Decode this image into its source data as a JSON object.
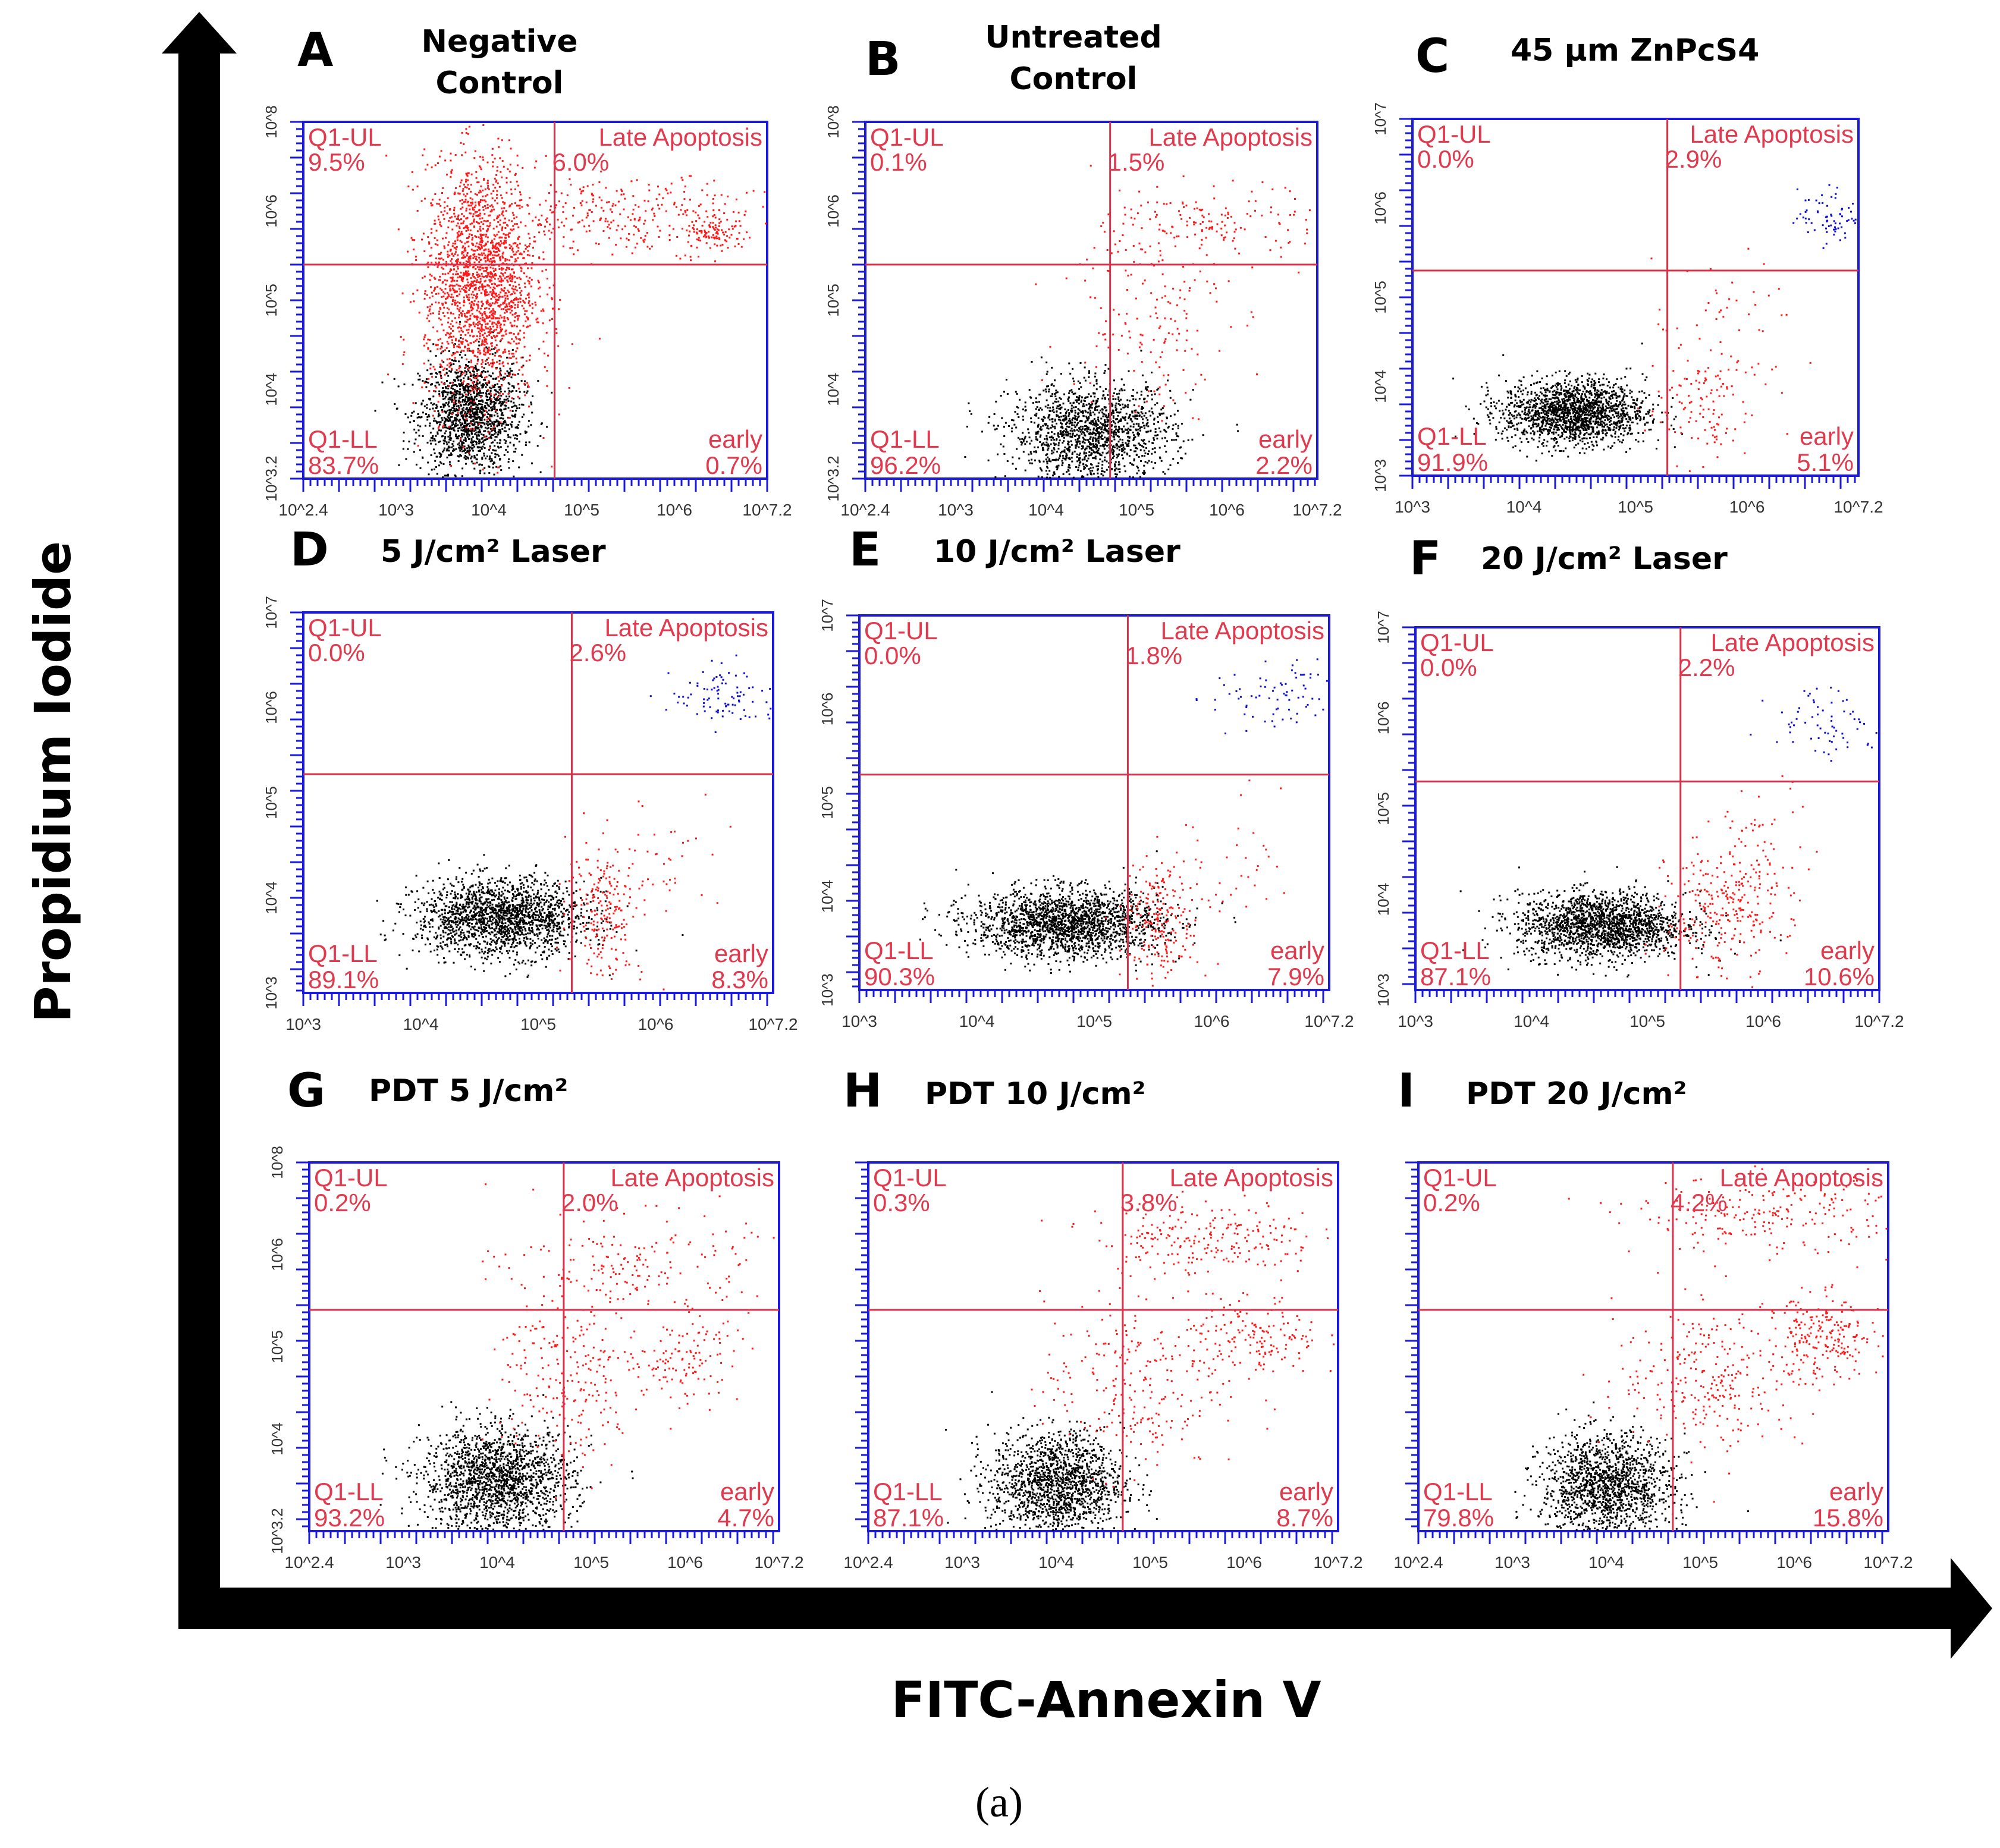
{
  "figure": {
    "y_axis_label": "Propidium Iodide",
    "x_axis_label": "FITC-Annexin V",
    "caption": "(a)"
  },
  "colors": {
    "plot_border": "#1a1ad8",
    "gate_line": "#d8324a",
    "label_red": "#e03a4e",
    "dot_red": "#ff1a1a",
    "dot_black": "#000000",
    "dot_blue": "#1010d0"
  },
  "chart_data": [
    {
      "type": "scatter",
      "panel": "A",
      "title": "Negative Control",
      "quadrants": {
        "ul_name": "Q1-UL",
        "ul_pct": "9.5%",
        "ur_name": "Late Apoptosis",
        "ur_pct": "6.0%",
        "ll_name": "Q1-LL",
        "ll_pct": "83.7%",
        "lr_name": "early",
        "lr_pct": "0.7%"
      },
      "x_ticks": [
        "10^2.4",
        "10^3",
        "10^4",
        "10^5",
        "10^6",
        "10^7.2"
      ],
      "y_ticks": [
        "10^3.2",
        "10^4",
        "10^5",
        "10^6",
        "10^8"
      ],
      "xlim": [
        2.4,
        7.2
      ],
      "ylim": [
        3.2,
        7.2
      ],
      "gate": {
        "x": 5.0,
        "y": 5.6
      }
    },
    {
      "type": "scatter",
      "panel": "B",
      "title": "Untreated Control",
      "quadrants": {
        "ul_name": "Q1-UL",
        "ul_pct": "0.1%",
        "ur_name": "Late Apoptosis",
        "ur_pct": "1.5%",
        "ll_name": "Q1-LL",
        "ll_pct": "96.2%",
        "lr_name": "early",
        "lr_pct": "2.2%"
      },
      "x_ticks": [
        "10^2.4",
        "10^3",
        "10^4",
        "10^5",
        "10^6",
        "10^7.2"
      ],
      "y_ticks": [
        "10^3.2",
        "10^4",
        "10^5",
        "10^6",
        "10^8"
      ],
      "xlim": [
        2.4,
        7.2
      ],
      "ylim": [
        3.2,
        7.2
      ],
      "gate": {
        "x": 5.0,
        "y": 5.6
      }
    },
    {
      "type": "scatter",
      "panel": "C",
      "title": "45 μm ZnPcS4",
      "quadrants": {
        "ul_name": "Q1-UL",
        "ul_pct": "0.0%",
        "ur_name": "Late Apoptosis",
        "ur_pct": "2.9%",
        "ll_name": "Q1-LL",
        "ll_pct": "91.9%",
        "lr_name": "early",
        "lr_pct": "5.1%"
      },
      "x_ticks": [
        "10^3",
        "10^4",
        "10^5",
        "10^6",
        "10^7.2"
      ],
      "y_ticks": [
        "10^3",
        "10^4",
        "10^5",
        "10^6",
        "10^7"
      ],
      "xlim": [
        3,
        7.2
      ],
      "ylim": [
        3,
        7
      ],
      "gate": {
        "x": 5.4,
        "y": 5.3
      }
    },
    {
      "type": "scatter",
      "panel": "D",
      "title": "5 J/cm² Laser",
      "quadrants": {
        "ul_name": "Q1-UL",
        "ul_pct": "0.0%",
        "ur_name": "Late Apoptosis",
        "ur_pct": "2.6%",
        "ll_name": "Q1-LL",
        "ll_pct": "89.1%",
        "lr_name": "early",
        "lr_pct": "8.3%"
      },
      "x_ticks": [
        "10^3",
        "10^4",
        "10^5",
        "10^6",
        "10^7.2"
      ],
      "y_ticks": [
        "10^3",
        "10^4",
        "10^5",
        "10^6",
        "10^7"
      ],
      "xlim": [
        3,
        7.2
      ],
      "ylim": [
        3,
        7
      ],
      "gate": {
        "x": 5.4,
        "y": 5.3
      }
    },
    {
      "type": "scatter",
      "panel": "E",
      "title": "10 J/cm² Laser",
      "quadrants": {
        "ul_name": "Q1-UL",
        "ul_pct": "0.0%",
        "ur_name": "Late Apoptosis",
        "ur_pct": "1.8%",
        "ll_name": "Q1-LL",
        "ll_pct": "90.3%",
        "lr_name": "early",
        "lr_pct": "7.9%"
      },
      "x_ticks": [
        "10^3",
        "10^4",
        "10^5",
        "10^6",
        "10^7.2"
      ],
      "y_ticks": [
        "10^3",
        "10^4",
        "10^5",
        "10^6",
        "10^7"
      ],
      "xlim": [
        3,
        7.2
      ],
      "ylim": [
        3,
        7
      ],
      "gate": {
        "x": 5.4,
        "y": 5.3
      }
    },
    {
      "type": "scatter",
      "panel": "F",
      "title": "20 J/cm² Laser",
      "quadrants": {
        "ul_name": "Q1-UL",
        "ul_pct": "0.0%",
        "ur_name": "Late Apoptosis",
        "ur_pct": "2.2%",
        "ll_name": "Q1-LL",
        "ll_pct": "87.1%",
        "lr_name": "early",
        "lr_pct": "10.6%"
      },
      "x_ticks": [
        "10^3",
        "10^4",
        "10^5",
        "10^6",
        "10^7.2"
      ],
      "y_ticks": [
        "10^3",
        "10^4",
        "10^5",
        "10^6",
        "10^7"
      ],
      "xlim": [
        3,
        7.2
      ],
      "ylim": [
        3,
        7
      ],
      "gate": {
        "x": 5.4,
        "y": 5.3
      }
    },
    {
      "type": "scatter",
      "panel": "G",
      "title": "PDT 5 J/cm²",
      "quadrants": {
        "ul_name": "Q1-UL",
        "ul_pct": "0.2%",
        "ur_name": "Late Apoptosis",
        "ur_pct": "2.0%",
        "ll_name": "Q1-LL",
        "ll_pct": "93.2%",
        "lr_name": "early",
        "lr_pct": "4.7%"
      },
      "x_ticks": [
        "10^2.4",
        "10^3",
        "10^4",
        "10^5",
        "10^6",
        "10^7.2"
      ],
      "y_ticks": [
        "10^3.2",
        "10^4",
        "10^5",
        "10^6",
        "10^8"
      ],
      "xlim": [
        2.4,
        7.2
      ],
      "ylim": [
        3.2,
        7.2
      ],
      "gate": {
        "x": 5.0,
        "y": 5.6
      }
    },
    {
      "type": "scatter",
      "panel": "H",
      "title": "PDT 10 J/cm²",
      "quadrants": {
        "ul_name": "Q1-UL",
        "ul_pct": "0.3%",
        "ur_name": "Late Apoptosis",
        "ur_pct": "3.8%",
        "ll_name": "Q1-LL",
        "ll_pct": "87.1%",
        "lr_name": "early",
        "lr_pct": "8.7%"
      },
      "x_ticks": [
        "10^2.4",
        "10^3",
        "10^4",
        "10^5",
        "10^6",
        "10^7.2"
      ],
      "y_ticks": [
        "",
        "",
        "",
        "",
        ""
      ],
      "xlim": [
        2.4,
        7.2
      ],
      "ylim": [
        3.2,
        7.2
      ],
      "gate": {
        "x": 5.0,
        "y": 5.6
      }
    },
    {
      "type": "scatter",
      "panel": "I",
      "title": "PDT 20 J/cm²",
      "quadrants": {
        "ul_name": "Q1-UL",
        "ul_pct": "0.2%",
        "ur_name": "Late Apoptosis",
        "ur_pct": "4.2%",
        "ll_name": "Q1-LL",
        "ll_pct": "79.8%",
        "lr_name": "early",
        "lr_pct": "15.8%"
      },
      "x_ticks": [
        "10^2.4",
        "10^3",
        "10^4",
        "10^5",
        "10^6",
        "10^7.2"
      ],
      "y_ticks": [
        "",
        "",
        "",
        "",
        ""
      ],
      "xlim": [
        2.4,
        7.2
      ],
      "ylim": [
        3.2,
        7.2
      ],
      "gate": {
        "x": 5.0,
        "y": 5.6
      }
    }
  ]
}
